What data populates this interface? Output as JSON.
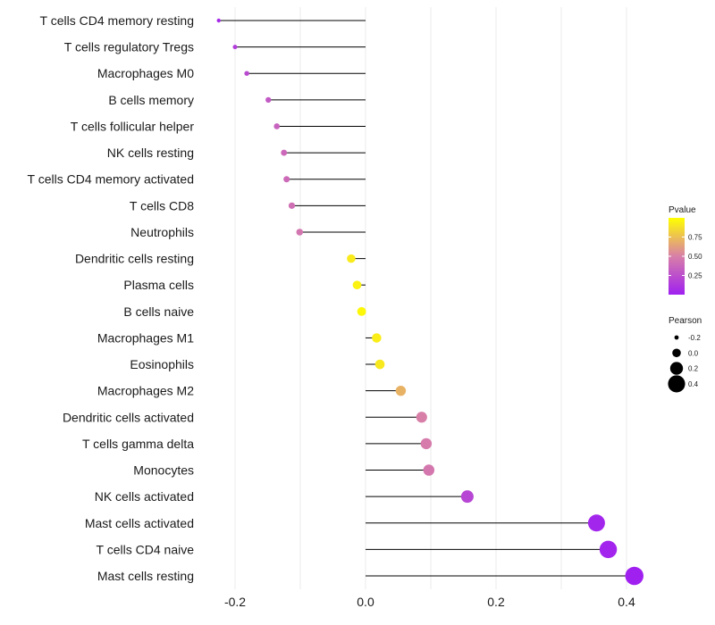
{
  "chart_data": {
    "type": "lollipop",
    "title": "",
    "xlabel": "",
    "ylabel": "",
    "xlim": [
      -0.25,
      0.42
    ],
    "x_ticks": [
      -0.2,
      0.0,
      0.2,
      0.4
    ],
    "x_tick_labels": [
      "-0.2",
      "0.0",
      "0.2",
      "0.4"
    ],
    "categories": [
      "T cells CD4 memory resting",
      "T cells regulatory  Tregs",
      "Macrophages M0",
      "B cells memory",
      "T cells follicular helper",
      "NK cells resting",
      "T cells CD4 memory activated",
      "T cells CD8",
      "Neutrophils",
      "Dendritic cells resting",
      "Plasma cells",
      "B cells naive",
      "Macrophages M1",
      "Eosinophils",
      "Macrophages M2",
      "Dendritic cells activated",
      "T cells gamma delta",
      "Monocytes",
      "NK cells activated",
      "Mast cells activated",
      "T cells CD4 naive",
      "Mast cells resting"
    ],
    "pearson": [
      -0.225,
      -0.2,
      -0.182,
      -0.149,
      -0.136,
      -0.125,
      -0.121,
      -0.113,
      -0.101,
      -0.022,
      -0.013,
      -0.006,
      0.017,
      0.022,
      0.054,
      0.086,
      0.093,
      0.097,
      0.156,
      0.354,
      0.372,
      0.412
    ],
    "pvalue": [
      0.05,
      0.15,
      0.22,
      0.3,
      0.35,
      0.38,
      0.39,
      0.42,
      0.45,
      0.92,
      0.95,
      0.97,
      0.93,
      0.91,
      0.7,
      0.5,
      0.48,
      0.46,
      0.2,
      0.03,
      0.02,
      0.001
    ],
    "legend_color": {
      "title": "Pvalue",
      "ticks": [
        0.25,
        0.5,
        0.75
      ],
      "tick_labels": [
        "0.25",
        "0.50",
        "0.75"
      ],
      "low_color": "#a020f0",
      "mid_color": "#d87fa8",
      "high_color": "#ffff00"
    },
    "legend_size": {
      "title": "Pearson",
      "values": [
        -0.2,
        0.0,
        0.2,
        0.4
      ],
      "labels": [
        "-0.2",
        "0.0",
        "0.2",
        "0.4"
      ]
    },
    "grid": true,
    "legend_position": "right"
  }
}
